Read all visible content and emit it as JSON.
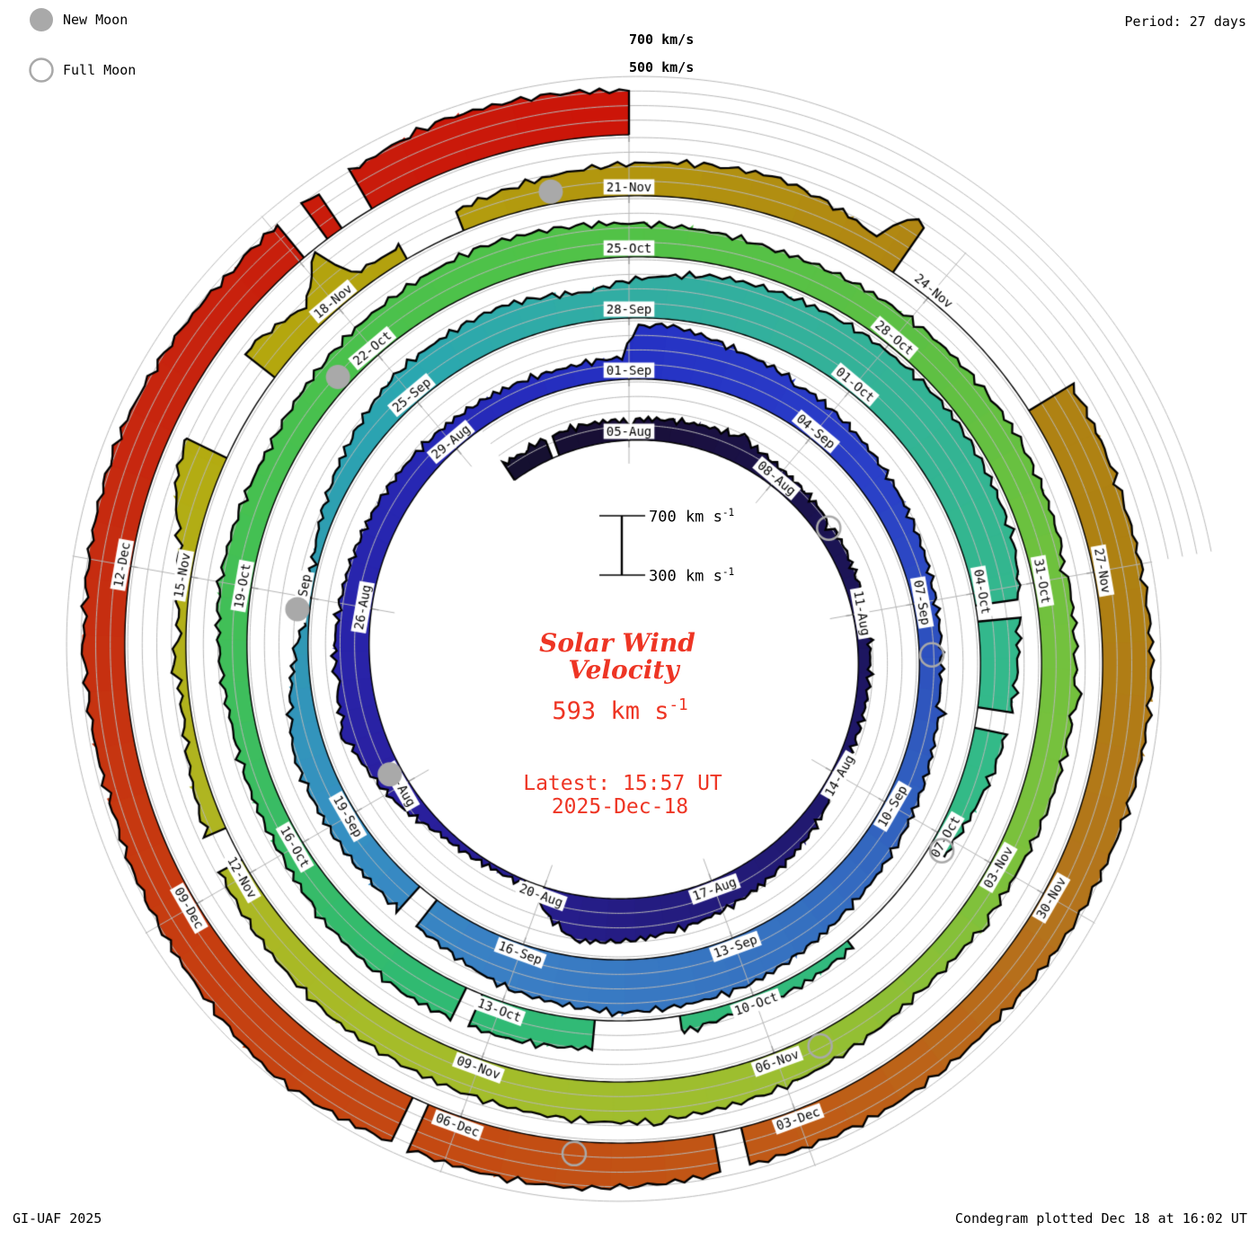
{
  "legend": {
    "new_moon_label": "New Moon",
    "full_moon_label": "Full Moon",
    "moon_color": "#a9a9a9"
  },
  "header": {
    "period_label": "Period: 27 days"
  },
  "outer_grid_labels": {
    "line_700": "700 km/s",
    "line_500": "500 km/s"
  },
  "scale_bar": {
    "top_label": "700 km s",
    "bottom_label": "300 km s",
    "sup": "-1"
  },
  "center_text": {
    "title_line1": "Solar Wind",
    "title_line2": "Velocity",
    "value": "593 km s",
    "value_sup": "-1",
    "latest_line1": "Latest: 15:57 UT",
    "latest_line2": "2025-Dec-18",
    "text_color": "#ee3524"
  },
  "footer": {
    "left": "GI-UAF 2025",
    "right": "Condegram plotted Dec 18 at 16:02 UT"
  },
  "chart_data": {
    "type": "area",
    "style": "polar spiral condegram, clockwise from top, one rotation = 27 days",
    "title": "Solar Wind Velocity",
    "latest_value_kms": 593,
    "latest_time": "15:57 UT 2025-Dec-18",
    "start_date": "2025-08-05",
    "end_date": "2025-12-18",
    "rotation_days": 27,
    "radial_axis": {
      "min": 300,
      "max": 700,
      "units": "km/s",
      "gridlines": [
        400,
        500,
        600,
        700
      ]
    },
    "label_step_days": 3,
    "date_labels": [
      "05-Aug",
      "08-Aug",
      "11-Aug",
      "14-Aug",
      "17-Aug",
      "20-Aug",
      "23-Aug",
      "26-Aug",
      "29-Aug",
      "01-Sep",
      "04-Sep",
      "07-Sep",
      "10-Sep",
      "13-Sep",
      "16-Sep",
      "19-Sep",
      "22-Sep",
      "25-Sep",
      "28-Sep",
      "01-Oct",
      "04-Oct",
      "07-Oct",
      "10-Oct",
      "13-Oct",
      "16-Oct",
      "19-Oct",
      "22-Oct",
      "25-Oct",
      "28-Oct",
      "31-Oct",
      "03-Nov",
      "06-Nov",
      "09-Nov",
      "12-Nov",
      "15-Nov",
      "18-Nov",
      "21-Nov",
      "24-Nov",
      "27-Nov",
      "30-Nov",
      "03-Dec",
      "06-Dec",
      "09-Dec",
      "12-Dec"
    ],
    "velocity_breakpoints": [
      [
        -2.5,
        430
      ],
      [
        -1,
        450
      ],
      [
        0,
        440
      ],
      [
        2,
        470
      ],
      [
        3,
        430
      ],
      [
        5,
        400
      ],
      [
        7,
        380
      ],
      [
        9,
        360
      ],
      [
        10,
        420
      ],
      [
        12,
        520
      ],
      [
        13.5,
        590
      ],
      [
        14.3,
        610
      ],
      [
        14.8,
        480
      ],
      [
        15.2,
        330
      ],
      [
        16,
        330
      ],
      [
        17,
        360
      ],
      [
        17.8,
        450
      ],
      [
        19,
        560
      ],
      [
        20,
        545
      ],
      [
        22,
        500
      ],
      [
        24,
        470
      ],
      [
        26,
        440
      ],
      [
        26.9,
        450
      ],
      [
        27.1,
        660
      ],
      [
        27.5,
        680
      ],
      [
        28.5,
        600
      ],
      [
        30,
        545
      ],
      [
        32,
        480
      ],
      [
        33,
        455
      ],
      [
        34.5,
        450
      ],
      [
        36,
        510
      ],
      [
        37.5,
        560
      ],
      [
        39,
        640
      ],
      [
        40.5,
        660
      ],
      [
        42,
        620
      ],
      [
        43,
        540
      ],
      [
        44,
        510
      ],
      [
        46,
        520
      ],
      [
        47,
        420
      ],
      [
        47.8,
        315
      ],
      [
        48.5,
        340
      ],
      [
        49.5,
        420
      ],
      [
        51,
        540
      ],
      [
        52.5,
        560
      ],
      [
        53.5,
        500
      ],
      [
        54,
        560
      ],
      [
        55,
        640
      ],
      [
        56.5,
        670
      ],
      [
        58,
        690
      ],
      [
        59.5,
        660
      ],
      [
        60.5,
        570
      ],
      [
        61,
        550
      ],
      [
        62,
        500
      ],
      [
        63,
        430
      ],
      [
        64,
        380
      ],
      [
        64.8,
        360
      ],
      [
        65.5,
        380
      ],
      [
        66.3,
        370
      ],
      [
        68,
        500
      ],
      [
        68.8,
        530
      ],
      [
        70,
        540
      ],
      [
        71,
        510
      ],
      [
        72,
        470
      ],
      [
        73.5,
        460
      ],
      [
        75,
        520
      ],
      [
        76.5,
        490
      ],
      [
        78,
        540
      ],
      [
        79.5,
        570
      ],
      [
        81,
        530
      ],
      [
        82.5,
        500
      ],
      [
        84,
        530
      ],
      [
        85.5,
        560
      ],
      [
        87,
        540
      ],
      [
        88.5,
        530
      ],
      [
        90,
        490
      ],
      [
        91.5,
        470
      ],
      [
        93,
        540
      ],
      [
        94.5,
        580
      ],
      [
        96,
        560
      ],
      [
        97.5,
        540
      ],
      [
        99,
        480
      ],
      [
        99.8,
        420
      ],
      [
        100.6,
        360
      ],
      [
        101.5,
        350
      ],
      [
        102.3,
        420
      ],
      [
        102.8,
        560
      ],
      [
        103.1,
        600
      ],
      [
        104.2,
        560
      ],
      [
        104.8,
        460
      ],
      [
        105.15,
        700
      ],
      [
        105.3,
        420
      ],
      [
        105.7,
        390
      ],
      [
        106.5,
        450
      ],
      [
        107.5,
        500
      ],
      [
        108.5,
        540
      ],
      [
        109.3,
        560
      ],
      [
        110,
        490
      ],
      [
        110.3,
        450
      ],
      [
        110.45,
        680
      ],
      [
        110.55,
        680
      ],
      [
        112.5,
        640
      ],
      [
        113.5,
        620
      ],
      [
        115,
        640
      ],
      [
        116.5,
        600
      ],
      [
        118,
        560
      ],
      [
        119.5,
        570
      ],
      [
        120.3,
        560
      ],
      [
        121,
        580
      ],
      [
        122,
        620
      ],
      [
        123.5,
        640
      ],
      [
        124.5,
        680
      ],
      [
        125.5,
        620
      ],
      [
        127,
        560
      ],
      [
        128.5,
        580
      ],
      [
        130,
        620
      ],
      [
        131.5,
        580
      ],
      [
        132.9,
        600
      ],
      [
        133.5,
        640
      ],
      [
        134.5,
        620
      ],
      [
        135,
        600
      ]
    ],
    "data_gaps_days": [
      [
        -1.6,
        -1.45
      ],
      [
        15.0,
        15.35
      ],
      [
        43.35,
        43.65
      ],
      [
        60.15,
        60.35
      ],
      [
        61.4,
        61.65
      ],
      [
        63.2,
        64.7
      ],
      [
        66.9,
        67.9
      ],
      [
        69.25,
        69.45
      ],
      [
        99.15,
        99.5
      ],
      [
        103.2,
        104.1
      ],
      [
        105.8,
        106.4
      ],
      [
        110.6,
        112.4
      ],
      [
        120.5,
        120.75
      ],
      [
        123.3,
        123.45
      ],
      [
        132.05,
        132.3
      ],
      [
        132.45,
        132.75
      ]
    ],
    "color_stops": [
      [
        -2.5,
        "#15102f"
      ],
      [
        0,
        "#190f38"
      ],
      [
        6,
        "#1c155c"
      ],
      [
        12,
        "#231b7a"
      ],
      [
        18,
        "#2a20a0"
      ],
      [
        24,
        "#2628b6"
      ],
      [
        27,
        "#2531c4"
      ],
      [
        31,
        "#2a3fc8"
      ],
      [
        34,
        "#2e53be"
      ],
      [
        38,
        "#3570c0"
      ],
      [
        42,
        "#3a7ec4"
      ],
      [
        45,
        "#3590c2"
      ],
      [
        48,
        "#2f9ab2"
      ],
      [
        51,
        "#2aa7b0"
      ],
      [
        54,
        "#32ada2"
      ],
      [
        58,
        "#33b494"
      ],
      [
        62,
        "#33ba88"
      ],
      [
        66,
        "#32ba7a"
      ],
      [
        70,
        "#30ba72"
      ],
      [
        73,
        "#3cbd60"
      ],
      [
        76,
        "#46c050"
      ],
      [
        80,
        "#4fc248"
      ],
      [
        84,
        "#5cc044"
      ],
      [
        87,
        "#70c13e"
      ],
      [
        90,
        "#7cc13c"
      ],
      [
        93,
        "#9cbe30"
      ],
      [
        97,
        "#a6bc28"
      ],
      [
        100,
        "#b0b420"
      ],
      [
        104,
        "#b4a90e"
      ],
      [
        108,
        "#b2950e"
      ],
      [
        111,
        "#b08414"
      ],
      [
        114,
        "#ae8112"
      ],
      [
        117,
        "#b4741c"
      ],
      [
        120,
        "#c05a16"
      ],
      [
        123,
        "#c44a12"
      ],
      [
        126,
        "#c63c10"
      ],
      [
        129,
        "#c62c10"
      ],
      [
        132,
        "#c81e0c"
      ],
      [
        135,
        "#cc1408"
      ]
    ],
    "moons": {
      "new_moon_days": [
        18.25,
        47.83,
        77.52,
        107.28
      ],
      "full_moon_days": [
        4.33,
        33.76,
        63.16,
        92.55,
        121.97
      ]
    }
  }
}
